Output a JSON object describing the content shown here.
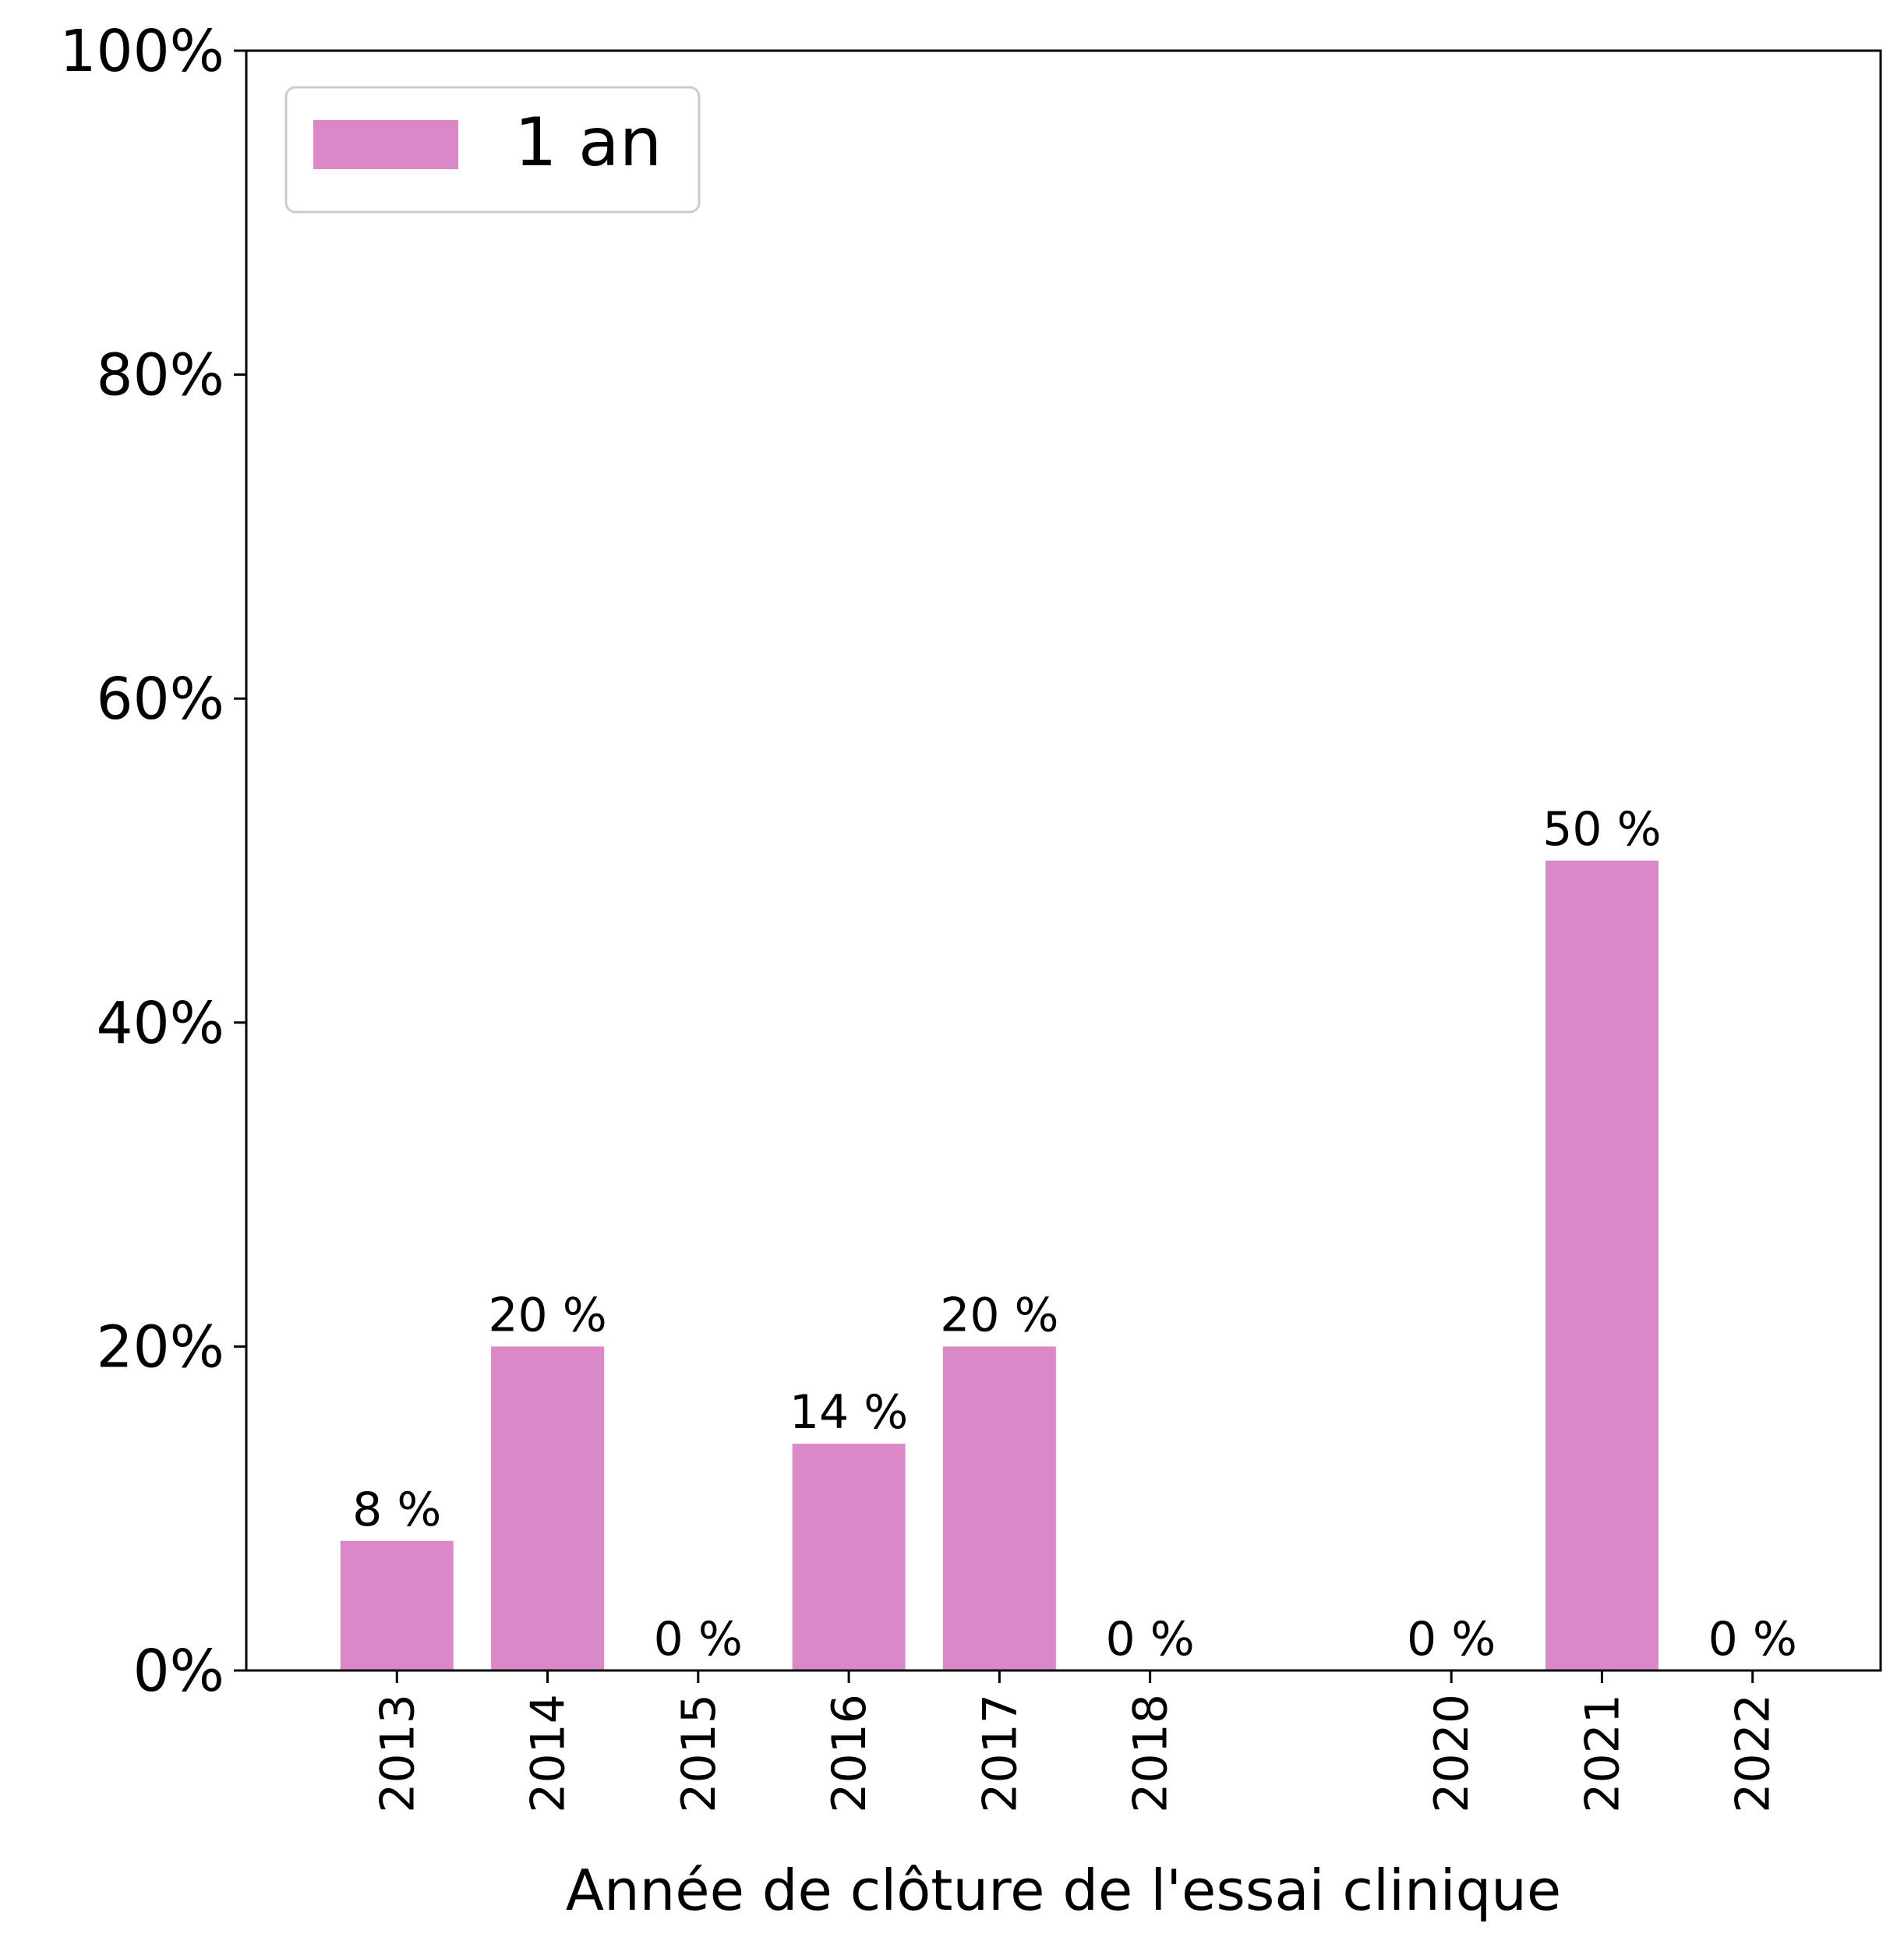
{
  "chart_data": {
    "type": "bar",
    "categories": [
      "2013",
      "2014",
      "2015",
      "2016",
      "2017",
      "2018",
      "2020",
      "2021",
      "2022"
    ],
    "x": [
      2013,
      2014,
      2015,
      2016,
      2017,
      2018,
      2020,
      2021,
      2022
    ],
    "series": [
      {
        "name": "1 an",
        "values": [
          8,
          20,
          0,
          14,
          20,
          0,
          0,
          50,
          0
        ],
        "labels": [
          "8 %",
          "20 %",
          "0 %",
          "14 %",
          "20 %",
          "0 %",
          "0 %",
          "50 %",
          "0 %"
        ],
        "color": "#db88c8"
      }
    ],
    "title": "",
    "xlabel": "Année de clôture de l'essai clinique",
    "ylabel": "",
    "ylim": [
      0,
      100
    ],
    "xlim": [
      2012,
      2022.85
    ],
    "yticks": [
      0,
      20,
      40,
      60,
      80,
      100
    ],
    "ytick_labels": [
      "0%",
      "20%",
      "40%",
      "60%",
      "80%",
      "100%"
    ],
    "xtick_rotation": "vertical",
    "grid": false,
    "legend": {
      "position": "top-left"
    }
  }
}
